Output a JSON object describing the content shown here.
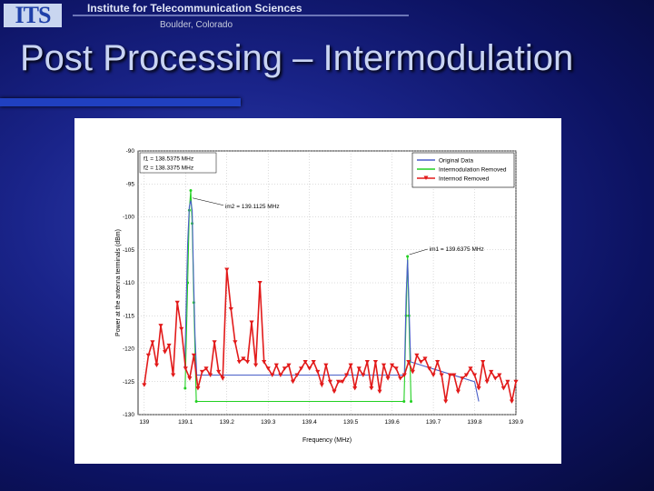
{
  "header": {
    "logo_text": "ITS",
    "org_name": "Institute for Telecommunication Sciences",
    "location": "Boulder, Colorado"
  },
  "slide": {
    "title": "Post Processing – Intermodulation"
  },
  "colors": {
    "background": "#1a248a",
    "title_text": "#c9d4f3",
    "accent_bar": "#2040c0",
    "series_original": "#4a5fc8",
    "series_green": "#22d022",
    "series_red": "#e21a1a"
  },
  "chart_data": {
    "type": "line",
    "xlabel": "Frequency (MHz)",
    "ylabel": "Power at the antenna terminals (dBm)",
    "xlim": [
      138.985,
      139.9
    ],
    "ylim": [
      -130,
      -90
    ],
    "xticks": [
      "139",
      "139.1",
      "139.2",
      "139.3",
      "139.4",
      "139.5",
      "139.6",
      "139.7",
      "139.8",
      "139.9"
    ],
    "yticks": [
      "-90",
      "-95",
      "-100",
      "-105",
      "-110",
      "-115",
      "-120",
      "-125",
      "-130"
    ],
    "grid": true,
    "legend_position": "top-right",
    "legend": [
      "Original Data",
      "Intermodulation Removed",
      "Intermod Removed"
    ],
    "top_left_labels": [
      "f1 = 138.5375 MHz",
      "f2 = 138.3375 MHz"
    ],
    "annotations": [
      {
        "text": "im2 = 139.1125 MHz",
        "x": 139.1125,
        "y": -97
      },
      {
        "text": "im1 = 139.6375 MHz",
        "x": 139.6375,
        "y": -106
      }
    ],
    "series": [
      {
        "name": "Original Data",
        "x": [
          139.098,
          139.102,
          139.105,
          139.109,
          139.1125,
          139.116,
          139.119,
          139.123,
          139.127,
          139.63,
          139.634,
          139.6375,
          139.641,
          139.645,
          139.8,
          139.81
        ],
        "y": [
          -123,
          -112,
          -104,
          -98.5,
          -97.5,
          -99,
          -108,
          -118,
          -124,
          -124,
          -112,
          -106.5,
          -113,
          -122,
          -125,
          -128
        ]
      },
      {
        "name": "Intermodulation Removed",
        "x": [
          139.099,
          139.105,
          139.109,
          139.1125,
          139.116,
          139.12,
          139.126,
          139.629,
          139.634,
          139.6375,
          139.641,
          139.646
        ],
        "y": [
          -126,
          -110,
          -99,
          -96,
          -101,
          -113,
          -128,
          -128,
          -115,
          -106,
          -115,
          -128
        ]
      },
      {
        "name": "Intermod Removed",
        "x": [
          139.0,
          139.01,
          139.02,
          139.03,
          139.04,
          139.05,
          139.06,
          139.07,
          139.08,
          139.09,
          139.1,
          139.11,
          139.12,
          139.13,
          139.14,
          139.15,
          139.16,
          139.17,
          139.18,
          139.19,
          139.2,
          139.21,
          139.22,
          139.23,
          139.24,
          139.25,
          139.26,
          139.27,
          139.28,
          139.29,
          139.3,
          139.31,
          139.32,
          139.33,
          139.34,
          139.35,
          139.36,
          139.37,
          139.38,
          139.39,
          139.4,
          139.41,
          139.42,
          139.43,
          139.44,
          139.45,
          139.46,
          139.47,
          139.48,
          139.49,
          139.5,
          139.51,
          139.52,
          139.53,
          139.54,
          139.55,
          139.56,
          139.57,
          139.58,
          139.59,
          139.6,
          139.61,
          139.62,
          139.63,
          139.64,
          139.65,
          139.66,
          139.67,
          139.68,
          139.69,
          139.7,
          139.71,
          139.72,
          139.73,
          139.74,
          139.75,
          139.76,
          139.77,
          139.78,
          139.79,
          139.8,
          139.81,
          139.82,
          139.83,
          139.84,
          139.85,
          139.86,
          139.87,
          139.88,
          139.89,
          139.9
        ],
        "y": [
          -125.5,
          -121,
          -119,
          -122.5,
          -116.5,
          -120.5,
          -119.5,
          -124,
          -113,
          -117,
          -123,
          -124.5,
          -121,
          -126,
          -123.5,
          -123,
          -124,
          -119,
          -123.5,
          -124.5,
          -108,
          -114,
          -119,
          -122,
          -121.5,
          -122,
          -116,
          -122.5,
          -110,
          -122,
          -123,
          -124,
          -122.5,
          -124,
          -123,
          -122.5,
          -125,
          -124,
          -123,
          -122,
          -123,
          -122,
          -123.5,
          -125.5,
          -122.5,
          -125,
          -126.5,
          -125,
          -125,
          -124,
          -122.5,
          -126,
          -123,
          -124,
          -122,
          -126,
          -122,
          -126.5,
          -122.5,
          -124.5,
          -122.5,
          -123,
          -124.5,
          -124,
          -122,
          -123.5,
          -121,
          -122,
          -121.5,
          -123,
          -124,
          -122,
          -124,
          -128,
          -124,
          -124,
          -126.5,
          -124.5,
          -124,
          -123,
          -124,
          -126,
          -122,
          -125,
          -123.5,
          -124.5,
          -124,
          -126,
          -125,
          -128,
          -125
        ]
      }
    ]
  }
}
